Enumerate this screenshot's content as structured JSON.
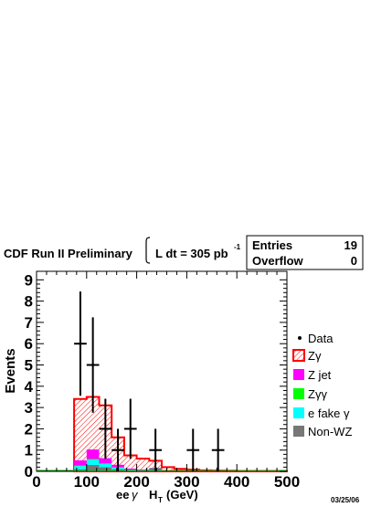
{
  "header": {
    "title": "CDF Run II Preliminary",
    "lumi_prefix": "L dt = 305 pb",
    "lumi_exp": "-1"
  },
  "stats": {
    "entries_label": "Entries",
    "entries_value": "19",
    "overflow_label": "Overflow",
    "overflow_value": "0"
  },
  "date": "03/25/06",
  "chart_data": {
    "type": "bar",
    "xlabel_pre": "ee",
    "xlabel_gamma": "γ",
    "xlabel_h": "H",
    "xlabel_sub": "T",
    "xlabel_unit": "(GeV)",
    "ylabel": "Events",
    "xlim": [
      0,
      500
    ],
    "ylim": [
      0,
      9.4
    ],
    "xticks": [
      0,
      100,
      200,
      300,
      400,
      500
    ],
    "yticks": [
      0,
      1,
      2,
      3,
      4,
      5,
      6,
      7,
      8,
      9
    ],
    "bin_edges": [
      75,
      100,
      125,
      150,
      175,
      200,
      225,
      250,
      275,
      300,
      325,
      350,
      375,
      400,
      425,
      450,
      475,
      500
    ],
    "series": [
      {
        "name": "Zγ",
        "color": "#ff0000",
        "fill": "hatch",
        "values": [
          3.4,
          3.5,
          3.1,
          1.6,
          0.75,
          0.6,
          0.5,
          0.2,
          0.12,
          0.08,
          0.05,
          0.04,
          0.03,
          0.02,
          0.02,
          0.01,
          0.01
        ]
      },
      {
        "name": "Z jet",
        "color": "#ff00ff",
        "values": [
          0.25,
          0.45,
          0.25,
          0.12,
          0.05,
          0.02,
          0.01,
          0,
          0,
          0,
          0,
          0,
          0,
          0,
          0,
          0,
          0
        ]
      },
      {
        "name": "Zγγ",
        "color": "#00ff00",
        "values": [
          0.02,
          0.03,
          0.02,
          0.01,
          0,
          0,
          0,
          0,
          0,
          0,
          0,
          0,
          0,
          0,
          0,
          0,
          0
        ]
      },
      {
        "name": "e fake γ",
        "color": "#00ffff",
        "values": [
          0.15,
          0.25,
          0.15,
          0.08,
          0.03,
          0.02,
          0.01,
          0,
          0,
          0,
          0,
          0,
          0,
          0,
          0,
          0,
          0
        ]
      },
      {
        "name": "Non-WZ",
        "color": "#777777",
        "values": [
          0.1,
          0.3,
          0.2,
          0.1,
          0.05,
          0.05,
          0.15,
          0,
          0,
          0,
          0,
          0,
          0,
          0,
          0,
          0,
          0
        ]
      }
    ],
    "data_points": {
      "name": "Data",
      "x": [
        87.5,
        112.5,
        137.5,
        162.5,
        187.5,
        237.5,
        312.5,
        362.5
      ],
      "y": [
        6,
        5,
        2,
        1,
        2,
        1,
        1,
        1
      ],
      "yerr": [
        2.45,
        2.24,
        1.41,
        1,
        1.41,
        1,
        1,
        1
      ],
      "xerr": 12.5
    }
  }
}
